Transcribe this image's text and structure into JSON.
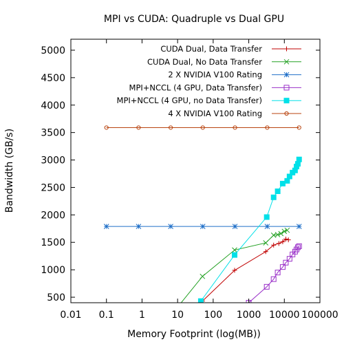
{
  "chart_data": {
    "type": "line",
    "title": "MPI vs CUDA: Quadruple vs Dual GPU",
    "xlabel": "Memory Footprint (log(MB))",
    "ylabel": "Bandwidth (GB/s)",
    "xscale": "log",
    "xlim": [
      0.01,
      100000
    ],
    "ylim": [
      400,
      5200
    ],
    "xticks": [
      0.01,
      0.1,
      1,
      10,
      100,
      1000,
      10000,
      100000
    ],
    "xtick_labels": [
      "0.01",
      "0.1",
      "1",
      "10",
      "100",
      "1000",
      "10000",
      "100000"
    ],
    "yticks": [
      500,
      1000,
      1500,
      2000,
      2500,
      3000,
      3500,
      4000,
      4500,
      5000
    ],
    "ytick_labels": [
      "500",
      "1000",
      "1500",
      "2000",
      "2500",
      "3000",
      "3500",
      "4000",
      "4500",
      "5000"
    ],
    "grid": false,
    "legend_position": "top-right",
    "series": [
      {
        "name": "CUDA Dual, Data Transfer",
        "color": "#c00000",
        "marker": "plus",
        "points": [
          [
            15,
            30
          ],
          [
            50,
            430
          ],
          [
            400,
            990
          ],
          [
            3000,
            1330
          ],
          [
            5000,
            1450
          ],
          [
            7000,
            1480
          ],
          [
            9000,
            1510
          ],
          [
            11000,
            1560
          ],
          [
            13000,
            1545
          ]
        ]
      },
      {
        "name": "CUDA Dual, No Data Transfer",
        "color": "#22a022",
        "marker": "x",
        "points": [
          [
            10,
            320
          ],
          [
            50,
            880
          ],
          [
            400,
            1360
          ],
          [
            3000,
            1490
          ],
          [
            5000,
            1630
          ],
          [
            6500,
            1640
          ],
          [
            8000,
            1660
          ],
          [
            10000,
            1700
          ],
          [
            12000,
            1720
          ]
        ]
      },
      {
        "name": "2 X NVIDIA V100 Rating",
        "color": "#1f6fc8",
        "marker": "star",
        "points": [
          [
            0.1,
            1790
          ],
          [
            0.8,
            1790
          ],
          [
            6.4,
            1790
          ],
          [
            51,
            1790
          ],
          [
            410,
            1790
          ],
          [
            3300,
            1790
          ],
          [
            26000,
            1790
          ]
        ]
      },
      {
        "name": "MPI+NCCL (4 GPU, Data Transfer)",
        "color": "#9a30c8",
        "marker": "open-square",
        "points": [
          [
            300,
            -200
          ],
          [
            1000,
            400
          ],
          [
            3200,
            690
          ],
          [
            5000,
            830
          ],
          [
            6500,
            950
          ],
          [
            9000,
            1050
          ],
          [
            11000,
            1130
          ],
          [
            14000,
            1200
          ],
          [
            17000,
            1280
          ],
          [
            20000,
            1330
          ],
          [
            22000,
            1370
          ],
          [
            24000,
            1410
          ],
          [
            26000,
            1430
          ]
        ]
      },
      {
        "name": "MPI+NCCL (4 GPU, no Data Transfer)",
        "color": "#00e0e8",
        "marker": "filled-square",
        "points": [
          [
            45,
            430
          ],
          [
            400,
            1270
          ],
          [
            3200,
            1960
          ],
          [
            5000,
            2320
          ],
          [
            6500,
            2430
          ],
          [
            9000,
            2570
          ],
          [
            12000,
            2620
          ],
          [
            14000,
            2700
          ],
          [
            17000,
            2770
          ],
          [
            20000,
            2810
          ],
          [
            22000,
            2880
          ],
          [
            24000,
            2930
          ],
          [
            26000,
            3010
          ]
        ]
      },
      {
        "name": "4 X NVIDIA V100 Rating",
        "color": "#b8430e",
        "marker": "open-circle",
        "points": [
          [
            0.1,
            3590
          ],
          [
            0.8,
            3590
          ],
          [
            6.4,
            3590
          ],
          [
            51,
            3590
          ],
          [
            410,
            3590
          ],
          [
            3300,
            3590
          ],
          [
            26000,
            3590
          ]
        ]
      }
    ]
  }
}
